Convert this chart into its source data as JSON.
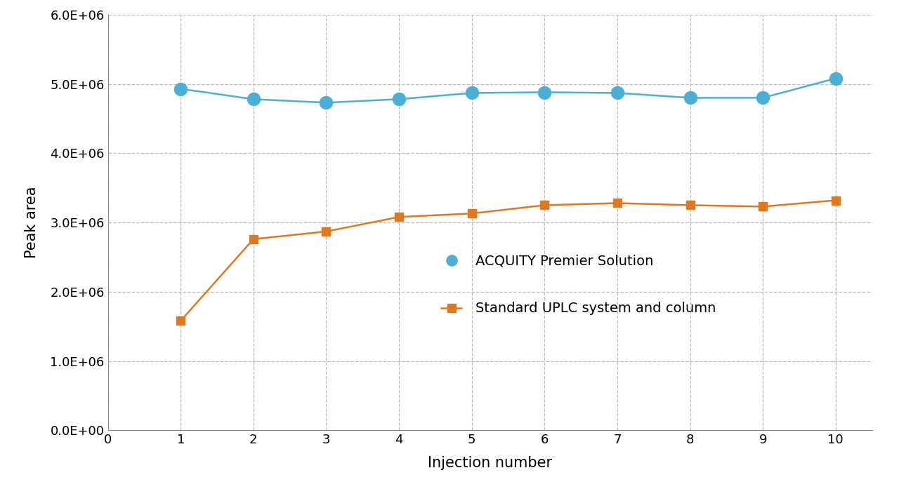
{
  "x": [
    1,
    2,
    3,
    4,
    5,
    6,
    7,
    8,
    9,
    10
  ],
  "acquity_y": [
    4930000,
    4780000,
    4730000,
    4780000,
    4870000,
    4880000,
    4870000,
    4800000,
    4800000,
    5080000
  ],
  "standard_y": [
    1580000,
    2760000,
    2870000,
    3080000,
    3130000,
    3250000,
    3280000,
    3250000,
    3230000,
    3320000
  ],
  "acquity_color": "#4BAFD6",
  "standard_color": "#E07820",
  "acquity_label": "ACQUITY Premier Solution",
  "standard_label": "Standard UPLC system and column",
  "ylabel": "Peak area",
  "xlabel": "Injection number",
  "xlim": [
    0,
    10.5
  ],
  "ylim": [
    0,
    6000000
  ],
  "yticks": [
    0,
    1000000,
    2000000,
    3000000,
    4000000,
    5000000,
    6000000
  ],
  "xticks": [
    0,
    1,
    2,
    3,
    4,
    5,
    6,
    7,
    8,
    9,
    10
  ],
  "grid_color": "#BBBBBB",
  "background_color": "#FFFFFF",
  "legend_fontsize": 14,
  "axis_fontsize": 15,
  "tick_fontsize": 13,
  "line_width": 1.8,
  "acquity_marker_size": 13,
  "standard_marker_size": 9
}
